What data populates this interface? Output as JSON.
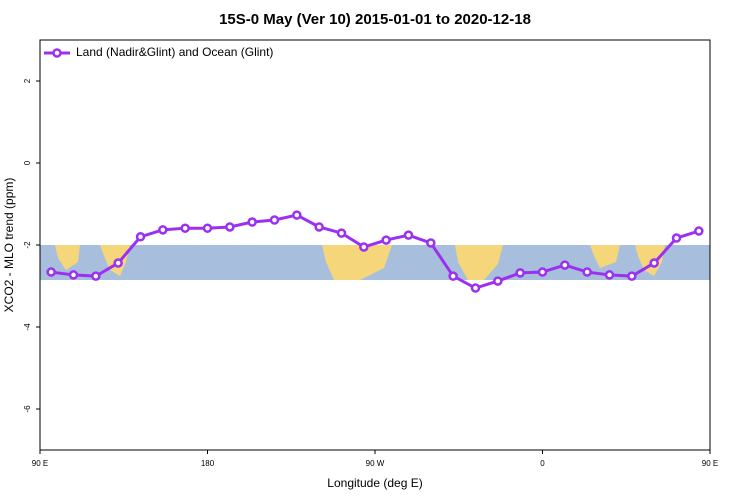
{
  "chart_data": {
    "type": "line",
    "title": "15S-0 May (Ver 10)   2015-01-01 to 2020-12-18",
    "x_label": "Longitude (deg E)",
    "y_label": "XCO2 - MLO trend (ppm)",
    "xlim": [
      90,
      450
    ],
    "xticks": [
      {
        "value": 90,
        "label": "90 E"
      },
      {
        "value": 180,
        "label": "180"
      },
      {
        "value": 270,
        "label": "90 W"
      },
      {
        "value": 360,
        "label": "0"
      },
      {
        "value": 450,
        "label": "90 E"
      }
    ],
    "xticks_extra_note_free": [],
    "ylim": [
      -7,
      3
    ],
    "yticks": [
      -6,
      -4,
      -2,
      0,
      2
    ],
    "legend": "top-left",
    "series": [
      {
        "name": "Land (Nadir&Glint) and Ocean (Glint)",
        "color": "#9b30f0",
        "x": [
          96,
          108,
          120,
          132,
          144,
          156,
          168,
          180,
          192,
          204,
          216,
          228,
          240,
          252,
          264,
          276,
          288,
          300,
          312,
          324,
          336,
          348,
          360,
          372,
          384,
          396,
          408,
          420,
          432,
          444
        ],
        "values": [
          -2.66,
          -2.73,
          -2.76,
          -2.44,
          -1.8,
          -1.63,
          -1.59,
          -1.59,
          -1.56,
          -1.44,
          -1.39,
          -1.27,
          -1.56,
          -1.71,
          -2.05,
          -1.88,
          -1.76,
          -1.95,
          -2.76,
          -3.05,
          -2.88,
          -2.68,
          -2.66,
          -2.49,
          -2.66,
          -2.73,
          -2.76,
          -2.44,
          -1.83,
          -1.66
        ]
      }
    ]
  }
}
